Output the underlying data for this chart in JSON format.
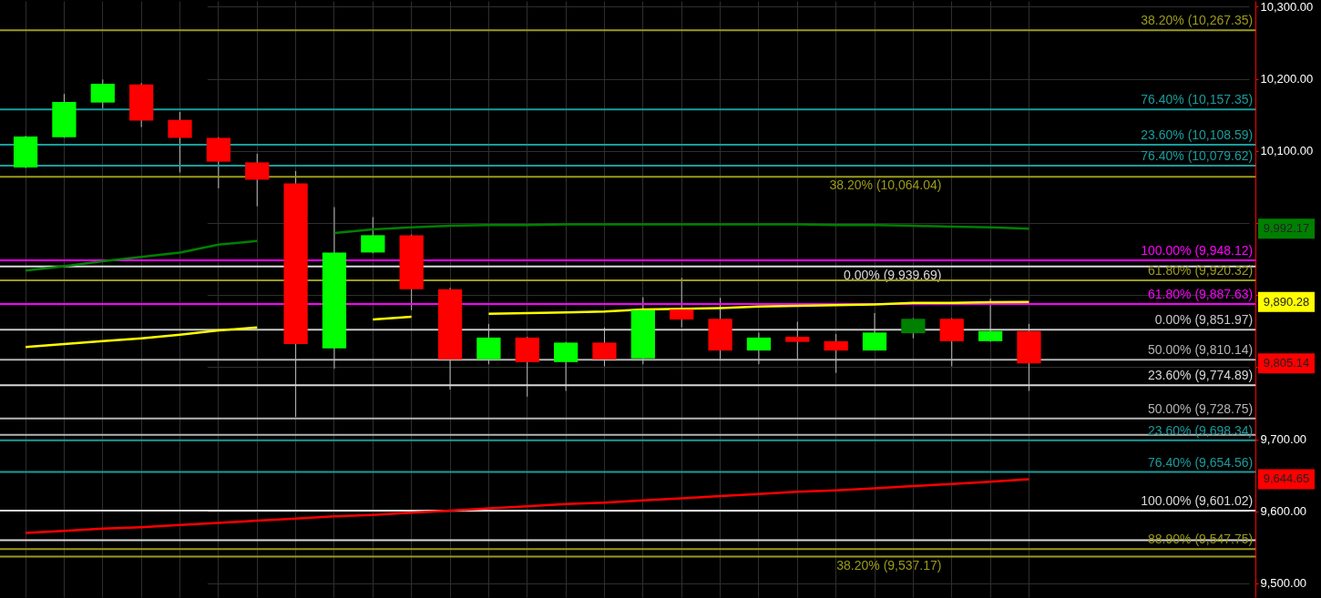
{
  "chart_data": {
    "type": "candlestick",
    "categories": [
      null,
      null,
      null,
      null,
      null,
      null,
      null,
      null,
      null,
      null,
      null,
      null,
      null,
      null,
      null,
      null,
      null,
      null,
      null,
      null,
      null,
      null,
      null,
      null,
      null,
      null,
      null
    ],
    "ohlc": [
      [
        10077,
        10121,
        10076,
        10120
      ],
      [
        10119,
        10179,
        10118,
        10168
      ],
      [
        10167,
        10199,
        10159,
        10193
      ],
      [
        10192,
        10194,
        10133,
        10142
      ],
      [
        10143,
        10154,
        10070,
        10118
      ],
      [
        10118,
        10119,
        10048,
        10085
      ],
      [
        10084,
        10096,
        10023,
        10060
      ],
      [
        10055,
        10072,
        9731,
        9832
      ],
      [
        9826,
        10022,
        9798,
        9959
      ],
      [
        9959,
        10008,
        9958,
        9983
      ],
      [
        9983,
        9984,
        9879,
        9908
      ],
      [
        9908,
        9910,
        9769,
        9811
      ],
      [
        9811,
        9860,
        9804,
        9841
      ],
      [
        9841,
        9842,
        9759,
        9807
      ],
      [
        9807,
        9835,
        9767,
        9834
      ],
      [
        9834,
        9855,
        9801,
        9811
      ],
      [
        9812,
        9897,
        9804,
        9879
      ],
      [
        9880,
        9924,
        9855,
        9866
      ],
      [
        9867,
        9896,
        9809,
        9823
      ],
      [
        9823,
        9848,
        9804,
        9841
      ],
      [
        9842,
        9863,
        9811,
        9835
      ],
      [
        9836,
        9846,
        9792,
        9823
      ],
      [
        9823,
        9875,
        9823,
        9848
      ],
      [
        9847,
        9868,
        9840,
        9867
      ],
      [
        9867,
        9868,
        9801,
        9836
      ],
      [
        9836,
        9895,
        9835,
        9850
      ],
      [
        9850,
        9860,
        9767,
        9805.14
      ]
    ],
    "colors": [
      "#00ff00",
      "#00ff00",
      "#00ff00",
      "#ff0000",
      "#ff0000",
      "#ff0000",
      "#ff0000",
      "#ff0000",
      "#00ff00",
      "#00ff00",
      "#ff0000",
      "#ff0000",
      "#00ff00",
      "#ff0000",
      "#00ff00",
      "#ff0000",
      "#00ff00",
      "#ff0000",
      "#ff0000",
      "#00ff00",
      "#ff0000",
      "#ff0000",
      "#00ff00",
      "#008000",
      "#ff0000",
      "#00ff00",
      "#ff0000"
    ],
    "series": [
      {
        "type": "line",
        "color": "#008000",
        "values": [
          9934,
          9940,
          9947,
          9953,
          9959,
          9970,
          9975,
          null,
          9986,
          9991,
          9994,
          9996,
          9997,
          9997,
          9998,
          9998,
          9998,
          9998,
          9998,
          9998,
          9998,
          9997,
          9997,
          9996,
          9995,
          9994,
          9992.17
        ]
      },
      {
        "type": "line",
        "color": "#ffff00",
        "values": [
          9828,
          9832,
          9836,
          9840,
          9845,
          9851,
          9855,
          null,
          null,
          9866,
          9870,
          null,
          9874,
          9875,
          9876,
          9877,
          9880,
          9881,
          9882,
          9884,
          9885,
          9886,
          9887,
          9889,
          9889,
          9890,
          9890.28
        ]
      },
      {
        "type": "line",
        "color": "#ff0000",
        "values": [
          9570,
          9573,
          9576,
          9578,
          9581,
          9584,
          9587,
          9590,
          9593,
          9595,
          9598,
          9601,
          9604,
          9607,
          9610,
          9612,
          9615,
          9618,
          9621,
          9624,
          9627,
          9629,
          9632,
          9635,
          9638,
          9641,
          9644.65
        ]
      }
    ],
    "ylim": [
      9481,
      10308
    ],
    "yticks": [
      {
        "value": 9500,
        "label": "9,500.00"
      },
      {
        "value": 9600,
        "label": "9,600.00"
      },
      {
        "value": 9700,
        "label": "9,700.00"
      },
      {
        "value": 9800,
        "label": null
      },
      {
        "value": 9900,
        "label": null
      },
      {
        "value": 10000,
        "label": null
      },
      {
        "value": 10100,
        "label": "10,100.00"
      },
      {
        "value": 10200,
        "label": "10,200.00"
      },
      {
        "value": 10300,
        "label": "10,300.00"
      }
    ],
    "tick_labels": "y",
    "grid": true,
    "ref_lines": [
      {
        "axis": "y",
        "value": 10267.35,
        "label": "38.20% (10,267.35)",
        "color": "#9b9b1a"
      },
      {
        "axis": "y",
        "value": 10157.35,
        "label": "76.40% (10,157.35)",
        "color": "#1a9c9c"
      },
      {
        "axis": "y",
        "value": 10108.59,
        "label": "23.60% (10,108.59)",
        "color": "#1a9c9c"
      },
      {
        "axis": "y",
        "value": 10079.62,
        "label": "76.40% (10,079.62)",
        "color": "#1a9c9c"
      },
      {
        "axis": "y",
        "value": 10064.04,
        "label": "38.20% (10,064.04)",
        "color": "#9b9b1a"
      },
      {
        "axis": "y",
        "value": 9948.12,
        "label": "100.00% (9,948.12)",
        "color": "#ff00ff"
      },
      {
        "axis": "y",
        "value": 9939.69,
        "label": "0.00% (9,939.69)",
        "color": "#d8d8d8"
      },
      {
        "axis": "y",
        "value": 9920.32,
        "label": "61.80% (9,920.32)",
        "color": "#9b9b1a"
      },
      {
        "axis": "y",
        "value": 9887.63,
        "label": "61.80% (9,887.63)",
        "color": "#ff00ff"
      },
      {
        "axis": "y",
        "value": 9851.97,
        "label": "0.00% (9,851.97)",
        "color": "#c8c8c8"
      },
      {
        "axis": "y",
        "value": 9810.14,
        "label": "50.00% (9,810.14)",
        "color": "#b4b4b4"
      },
      {
        "axis": "y",
        "value": 9774.89,
        "label": "23.60% (9,774.89)",
        "color": "#d8d8d8"
      },
      {
        "axis": "y",
        "value": 9728.75,
        "label": "50.00% (9,728.75)",
        "color": "#b4b4b4"
      },
      {
        "axis": "y",
        "value": 9706,
        "color": "#b4b4b4"
      },
      {
        "axis": "y",
        "value": 9698.34,
        "label": "23.60% (9,698.34)",
        "color": "#1a9c9c"
      },
      {
        "axis": "y",
        "value": 9654.56,
        "label": "76.40% (9,654.56)",
        "color": "#1a9c9c"
      },
      {
        "axis": "y",
        "value": 9601.02,
        "label": "100.00% (9,601.02)",
        "color": "#d8d8d8"
      },
      {
        "axis": "y",
        "value": 9560,
        "color": "#d8d8d8"
      },
      {
        "axis": "y",
        "value": 9547.75,
        "label": "88.90% (9,547.75)",
        "color": "#9b9b1a"
      },
      {
        "axis": "y",
        "value": 9537.17,
        "label": "38.20% (9,537.17)",
        "color": "#9b9b1a"
      }
    ],
    "annotations": [
      "9,992.17",
      "9,890.28",
      "9,644.65",
      "9,805.14"
    ]
  }
}
